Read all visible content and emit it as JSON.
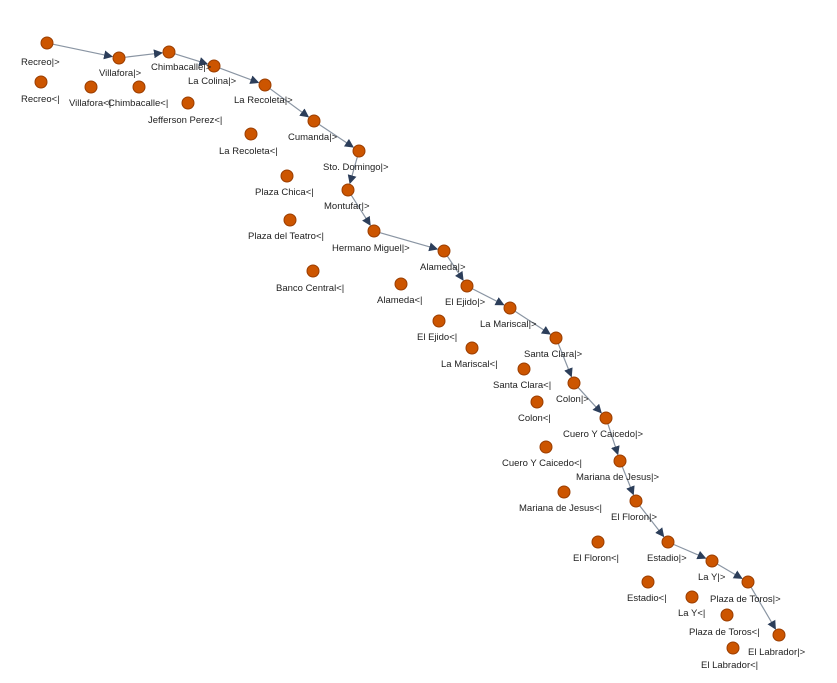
{
  "colors": {
    "node": "#cc5500",
    "edge": "#8a95a3",
    "arrow": "#2c3e5a"
  },
  "nodes": [
    {
      "id": "n0",
      "label": "Recreo|>"
    },
    {
      "id": "n1",
      "label": "Recreo<|"
    },
    {
      "id": "n2",
      "label": "Villafora|>"
    },
    {
      "id": "n3",
      "label": "Villafora<|"
    },
    {
      "id": "n4",
      "label": "Chimbacalle|>"
    },
    {
      "id": "n5",
      "label": "Chimbacalle<|"
    },
    {
      "id": "n6",
      "label": "La Colina|>"
    },
    {
      "id": "n7",
      "label": "Jefferson Perez<|"
    },
    {
      "id": "n8",
      "label": "La Recoleta|>"
    },
    {
      "id": "n9",
      "label": "La Recoleta<|"
    },
    {
      "id": "n10",
      "label": "Cumanda|>"
    },
    {
      "id": "n11",
      "label": "Sto. Domingo|>"
    },
    {
      "id": "n12",
      "label": "Plaza Chica<|"
    },
    {
      "id": "n13",
      "label": "Montufar|>"
    },
    {
      "id": "n14",
      "label": "Plaza del Teatro<|"
    },
    {
      "id": "n15",
      "label": "Hermano Miguel|>"
    },
    {
      "id": "n16",
      "label": "Banco Central<|"
    },
    {
      "id": "n17",
      "label": "Alameda|>"
    },
    {
      "id": "n18",
      "label": "Alameda<|"
    },
    {
      "id": "n19",
      "label": "El Ejido|>"
    },
    {
      "id": "n20",
      "label": "El Ejido<|"
    },
    {
      "id": "n21",
      "label": "La Mariscal|>"
    },
    {
      "id": "n22",
      "label": "La Mariscal<|"
    },
    {
      "id": "n23",
      "label": "Santa Clara|>"
    },
    {
      "id": "n24",
      "label": "Santa Clara<|"
    },
    {
      "id": "n25",
      "label": "Colon|>"
    },
    {
      "id": "n26",
      "label": "Colon<|"
    },
    {
      "id": "n27",
      "label": "Cuero Y Caicedo|>"
    },
    {
      "id": "n28",
      "label": "Cuero Y Caicedo<|"
    },
    {
      "id": "n29",
      "label": "Mariana de Jesus|>"
    },
    {
      "id": "n30",
      "label": "Mariana de Jesus<|"
    },
    {
      "id": "n31",
      "label": "El Floron|>"
    },
    {
      "id": "n32",
      "label": "El Floron<|"
    },
    {
      "id": "n33",
      "label": "Estadio|>"
    },
    {
      "id": "n34",
      "label": "Estadio<|"
    },
    {
      "id": "n35",
      "label": "La Y|>"
    },
    {
      "id": "n36",
      "label": "La Y<|"
    },
    {
      "id": "n37",
      "label": "Plaza de Toros|>"
    },
    {
      "id": "n38",
      "label": "Plaza de Toros<|"
    },
    {
      "id": "n39",
      "label": "El Labrador|>"
    },
    {
      "id": "n40",
      "label": "El Labrador<|"
    }
  ],
  "edges": [
    [
      "n0",
      "n2"
    ],
    [
      "n2",
      "n4"
    ],
    [
      "n4",
      "n6"
    ],
    [
      "n6",
      "n8"
    ],
    [
      "n8",
      "n10"
    ],
    [
      "n10",
      "n11"
    ],
    [
      "n11",
      "n13"
    ],
    [
      "n13",
      "n15"
    ],
    [
      "n15",
      "n17"
    ],
    [
      "n17",
      "n19"
    ],
    [
      "n19",
      "n21"
    ],
    [
      "n21",
      "n23"
    ],
    [
      "n23",
      "n25"
    ],
    [
      "n25",
      "n27"
    ],
    [
      "n27",
      "n29"
    ],
    [
      "n29",
      "n31"
    ],
    [
      "n31",
      "n33"
    ],
    [
      "n33",
      "n35"
    ],
    [
      "n35",
      "n37"
    ],
    [
      "n37",
      "n39"
    ]
  ]
}
